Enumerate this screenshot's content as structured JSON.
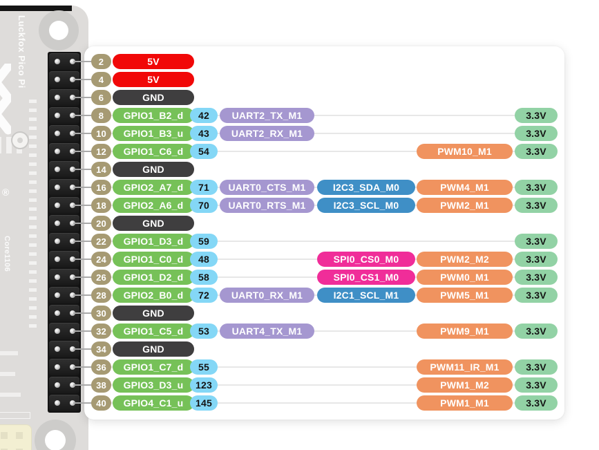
{
  "board": {
    "title_vertical": "Luckfox Pico Pi",
    "chip_label": "Core1106",
    "registered_mark": "®"
  },
  "colors": {
    "pin": "#a69a73",
    "power5v": "#f10808",
    "ground": "#3f3e3f",
    "gpio": "#76c158",
    "gpio_num": "#84d7f6",
    "uart": "#a597d0",
    "i2c": "#3f8fc6",
    "spi": "#f02d99",
    "pwm": "#f0935f",
    "v33": "#92d2a5",
    "dark_text": "#141414",
    "light_text": "#ffffff"
  },
  "rows": [
    {
      "pin": "2",
      "name": "5V",
      "type": "power5v"
    },
    {
      "pin": "4",
      "name": "5V",
      "type": "power5v"
    },
    {
      "pin": "6",
      "name": "GND",
      "type": "ground"
    },
    {
      "pin": "8",
      "name": "GPIO1_B2_d",
      "type": "gpio",
      "num": "42",
      "uart": "UART2_TX_M1",
      "v33": "3.3V"
    },
    {
      "pin": "10",
      "name": "GPIO1_B3_u",
      "type": "gpio",
      "num": "43",
      "uart": "UART2_RX_M1",
      "v33": "3.3V"
    },
    {
      "pin": "12",
      "name": "GPIO1_C6_d",
      "type": "gpio",
      "num": "54",
      "pwm": "PWM10_M1",
      "v33": "3.3V"
    },
    {
      "pin": "14",
      "name": "GND",
      "type": "ground"
    },
    {
      "pin": "16",
      "name": "GPIO2_A7_d",
      "type": "gpio",
      "num": "71",
      "uart": "UART0_CTS_M1",
      "bus": "I2C3_SDA_M0",
      "bus_type": "i2c",
      "pwm": "PWM4_M1",
      "v33": "3.3V"
    },
    {
      "pin": "18",
      "name": "GPIO2_A6_d",
      "type": "gpio",
      "num": "70",
      "uart": "UART0_RTS_M1",
      "bus": "I2C3_SCL_M0",
      "bus_type": "i2c",
      "pwm": "PWM2_M1",
      "v33": "3.3V"
    },
    {
      "pin": "20",
      "name": "GND",
      "type": "ground"
    },
    {
      "pin": "22",
      "name": "GPIO1_D3_d",
      "type": "gpio",
      "num": "59",
      "v33": "3.3V"
    },
    {
      "pin": "24",
      "name": "GPIO1_C0_d",
      "type": "gpio",
      "num": "48",
      "bus": "SPI0_CS0_M0",
      "bus_type": "spi",
      "pwm": "PWM2_M2",
      "v33": "3.3V"
    },
    {
      "pin": "26",
      "name": "GPIO1_D2_d",
      "type": "gpio",
      "num": "58",
      "bus": "SPI0_CS1_M0",
      "bus_type": "spi",
      "pwm": "PWM0_M1",
      "v33": "3.3V"
    },
    {
      "pin": "28",
      "name": "GPIO2_B0_d",
      "type": "gpio",
      "num": "72",
      "uart": "UART0_RX_M1",
      "bus": "I2C1_SCL_M1",
      "bus_type": "i2c",
      "pwm": "PWM5_M1",
      "v33": "3.3V"
    },
    {
      "pin": "30",
      "name": "GND",
      "type": "ground"
    },
    {
      "pin": "32",
      "name": "GPIO1_C5_d",
      "type": "gpio",
      "num": "53",
      "uart": "UART4_TX_M1",
      "pwm": "PWM9_M1",
      "v33": "3.3V"
    },
    {
      "pin": "34",
      "name": "GND",
      "type": "ground"
    },
    {
      "pin": "36",
      "name": "GPIO1_C7_d",
      "type": "gpio",
      "num": "55",
      "pwm": "PWM11_IR_M1",
      "v33": "3.3V"
    },
    {
      "pin": "38",
      "name": "GPIO3_D3_u",
      "type": "gpio",
      "num": "123",
      "pwm": "PWM1_M2",
      "v33": "3.3V"
    },
    {
      "pin": "40",
      "name": "GPIO4_C1_u",
      "type": "gpio",
      "num": "145",
      "pwm": "PWM1_M1",
      "v33": "3.3V"
    }
  ]
}
